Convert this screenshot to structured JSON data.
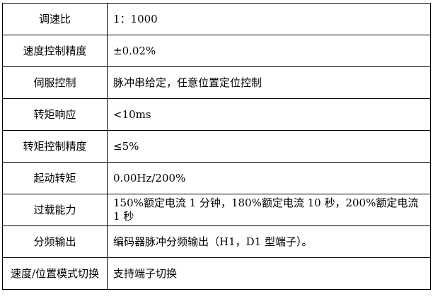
{
  "table": {
    "rows": [
      [
        "调速比",
        "1：1000"
      ],
      [
        "速度控制精度",
        "±0.02%"
      ],
      [
        "伺服控制",
        "脉冲串给定，任意位置定位控制"
      ],
      [
        "转矩响应",
        "<10ms"
      ],
      [
        "转矩控制精度",
        "≤5%"
      ],
      [
        "起动转矩",
        "0.00Hz/200%"
      ],
      [
        "过载能力",
        "150%额定电流 1 分钟，180%额定电流 10 秒，200%额定电流 1 秒"
      ],
      [
        "分频输出",
        "编码器脉冲分频输出（H1，D1 型端子）。"
      ],
      [
        "速度/位置模式切换",
        "支持端子切换"
      ]
    ]
  }
}
